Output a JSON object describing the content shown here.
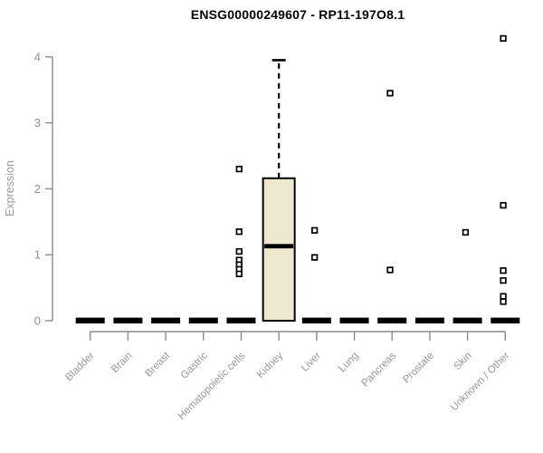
{
  "chart_data": {
    "type": "boxplot",
    "title": "ENSG00000249607 - RP11-197O8.1",
    "ylabel": "Expression",
    "xlabel": "",
    "ylim": [
      0,
      4.3
    ],
    "yticks": [
      0,
      1,
      2,
      3,
      4
    ],
    "grid": false,
    "legend": "none",
    "categories": [
      "Bladder",
      "Brain",
      "Breast",
      "Gastric",
      "Hematopoietic cells",
      "Kidney",
      "Liver",
      "Lung",
      "Pancreas",
      "Prostate",
      "Skin",
      "Unknown / Other"
    ],
    "series": [
      {
        "name": "Bladder",
        "q1": 0,
        "median": 0,
        "q3": 0,
        "whisker_low": 0,
        "whisker_high": 0,
        "outliers": []
      },
      {
        "name": "Brain",
        "q1": 0,
        "median": 0,
        "q3": 0,
        "whisker_low": 0,
        "whisker_high": 0,
        "outliers": []
      },
      {
        "name": "Breast",
        "q1": 0,
        "median": 0,
        "q3": 0,
        "whisker_low": 0,
        "whisker_high": 0,
        "outliers": []
      },
      {
        "name": "Gastric",
        "q1": 0,
        "median": 0,
        "q3": 0,
        "whisker_low": 0,
        "whisker_high": 0,
        "outliers": []
      },
      {
        "name": "Hematopoietic cells",
        "q1": 0,
        "median": 0,
        "q3": 0,
        "whisker_low": 0,
        "whisker_high": 0,
        "outliers": [
          2.3,
          1.35,
          1.05,
          0.92,
          0.85,
          0.78,
          0.71
        ]
      },
      {
        "name": "Kidney",
        "q1": 0,
        "median": 1.13,
        "q3": 2.16,
        "whisker_low": 0,
        "whisker_high": 3.95,
        "outliers": []
      },
      {
        "name": "Liver",
        "q1": 0,
        "median": 0,
        "q3": 0,
        "whisker_low": 0,
        "whisker_high": 0,
        "outliers": [
          1.37,
          0.96
        ]
      },
      {
        "name": "Lung",
        "q1": 0,
        "median": 0,
        "q3": 0,
        "whisker_low": 0,
        "whisker_high": 0,
        "outliers": []
      },
      {
        "name": "Pancreas",
        "q1": 0,
        "median": 0,
        "q3": 0,
        "whisker_low": 0,
        "whisker_high": 0,
        "outliers": [
          3.45,
          0.77
        ]
      },
      {
        "name": "Prostate",
        "q1": 0,
        "median": 0,
        "q3": 0,
        "whisker_low": 0,
        "whisker_high": 0,
        "outliers": []
      },
      {
        "name": "Skin",
        "q1": 0,
        "median": 0,
        "q3": 0,
        "whisker_low": 0,
        "whisker_high": 0,
        "outliers": [
          1.34
        ]
      },
      {
        "name": "Unknown / Other",
        "q1": 0,
        "median": 0,
        "q3": 0,
        "whisker_low": 0,
        "whisker_high": 0,
        "outliers": [
          4.28,
          1.75,
          0.76,
          0.61,
          0.37,
          0.29
        ]
      }
    ],
    "colors": {
      "box_fill": "#EDE8CE",
      "box_border": "#000000",
      "median": "#000000",
      "zero_bar": "#000000",
      "whisker": "#000000",
      "axis": "#8C8C8C",
      "tick_label": "#8F8F8F",
      "category_label": "#999999",
      "title": "#000000",
      "ylabel_color": "#9B9B9B",
      "outlier_fill": "#FFFFFF",
      "outlier_border": "#000000",
      "background": "#FFFFFF"
    }
  }
}
